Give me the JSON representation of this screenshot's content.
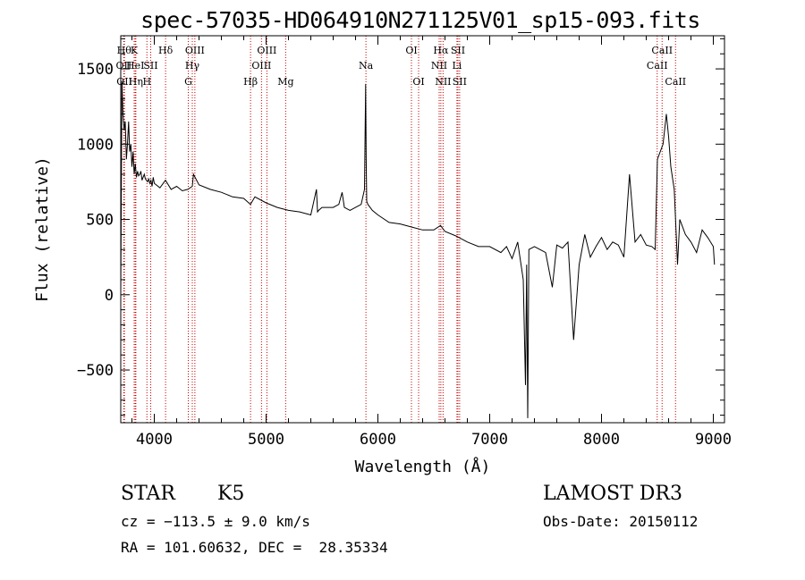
{
  "title": "spec-57035-HD064910N271125V01_sp15-093.fits",
  "chart_data": {
    "type": "line",
    "title": "spec-57035-HD064910N271125V01_sp15-093.fits",
    "xlabel": "Wavelength (Å)",
    "ylabel": "Flux (relative)",
    "xlim": [
      3700,
      9100
    ],
    "ylim": [
      -850,
      1720
    ],
    "xticks": [
      4000,
      5000,
      6000,
      7000,
      8000,
      9000
    ],
    "yticks": [
      -500,
      0,
      500,
      1000,
      1500
    ],
    "series": [
      {
        "name": "spectrum",
        "x": [
          3700,
          3710,
          3720,
          3730,
          3740,
          3750,
          3760,
          3770,
          3780,
          3790,
          3800,
          3810,
          3820,
          3830,
          3840,
          3850,
          3860,
          3870,
          3880,
          3890,
          3900,
          3910,
          3920,
          3930,
          3940,
          3950,
          3960,
          3970,
          3980,
          3990,
          4000,
          4050,
          4100,
          4150,
          4200,
          4250,
          4300,
          4340,
          4350,
          4400,
          4500,
          4600,
          4700,
          4800,
          4860,
          4900,
          5000,
          5100,
          5200,
          5300,
          5400,
          5450,
          5460,
          5470,
          5500,
          5600,
          5650,
          5680,
          5700,
          5750,
          5800,
          5850,
          5880,
          5890,
          5895,
          5900,
          5910,
          5950,
          6000,
          6100,
          6200,
          6300,
          6400,
          6500,
          6560,
          6600,
          6700,
          6800,
          6900,
          7000,
          7100,
          7150,
          7200,
          7250,
          7300,
          7320,
          7330,
          7340,
          7350,
          7400,
          7500,
          7560,
          7600,
          7650,
          7700,
          7750,
          7800,
          7850,
          7900,
          7950,
          8000,
          8050,
          8100,
          8150,
          8200,
          8250,
          8300,
          8350,
          8400,
          8450,
          8480,
          8500,
          8550,
          8580,
          8600,
          8620,
          8650,
          8680,
          8700,
          8750,
          8800,
          8850,
          8900,
          8950,
          9000,
          9010
        ],
        "y": [
          0,
          1420,
          1200,
          1100,
          1150,
          900,
          1000,
          1150,
          950,
          1000,
          850,
          950,
          800,
          870,
          780,
          820,
          790,
          800,
          820,
          760,
          780,
          800,
          770,
          760,
          750,
          770,
          740,
          760,
          720,
          780,
          740,
          710,
          760,
          700,
          720,
          690,
          700,
          720,
          800,
          730,
          700,
          680,
          650,
          640,
          600,
          650,
          610,
          580,
          560,
          550,
          530,
          700,
          550,
          560,
          580,
          580,
          600,
          680,
          580,
          560,
          580,
          600,
          700,
          1400,
          900,
          620,
          600,
          560,
          530,
          480,
          470,
          450,
          430,
          430,
          460,
          420,
          390,
          350,
          320,
          320,
          280,
          320,
          240,
          350,
          100,
          -600,
          200,
          -820,
          300,
          320,
          280,
          50,
          330,
          310,
          350,
          -300,
          200,
          400,
          250,
          320,
          380,
          300,
          350,
          330,
          250,
          800,
          350,
          400,
          330,
          320,
          300,
          900,
          1000,
          1200,
          1050,
          850,
          700,
          200,
          500,
          400,
          350,
          280,
          430,
          380,
          320,
          200
        ]
      }
    ],
    "line_ids": [
      {
        "x": 3730,
        "label": "Hθ",
        "row": 1
      },
      {
        "x": 3727,
        "label": "OII",
        "row": 2
      },
      {
        "x": 3733,
        "label": "OII",
        "row": 3
      },
      {
        "x": 3820,
        "label": "K",
        "row": 1
      },
      {
        "x": 3830,
        "label": "HeI",
        "row": 2
      },
      {
        "x": 3835,
        "label": "Hη",
        "row": 3
      },
      {
        "x": 3934,
        "label": "H",
        "row": 3
      },
      {
        "x": 3968,
        "label": "SII",
        "row": 2
      },
      {
        "x": 4101,
        "label": "Hδ",
        "row": 1
      },
      {
        "x": 4340,
        "label": "Hγ",
        "row": 2
      },
      {
        "x": 4363,
        "label": "OIII",
        "row": 1
      },
      {
        "x": 4304,
        "label": "G",
        "row": 3
      },
      {
        "x": 4861,
        "label": "Hβ",
        "row": 3
      },
      {
        "x": 4959,
        "label": "OIII",
        "row": 2
      },
      {
        "x": 5007,
        "label": "OIII",
        "row": 1
      },
      {
        "x": 5175,
        "label": "Mg",
        "row": 3
      },
      {
        "x": 5893,
        "label": "Na",
        "row": 2
      },
      {
        "x": 6300,
        "label": "OI",
        "row": 1
      },
      {
        "x": 6364,
        "label": "OI",
        "row": 3
      },
      {
        "x": 6548,
        "label": "NII",
        "row": 2
      },
      {
        "x": 6563,
        "label": "Hα",
        "row": 1
      },
      {
        "x": 6583,
        "label": "NII",
        "row": 3
      },
      {
        "x": 6707,
        "label": "Li",
        "row": 2
      },
      {
        "x": 6716,
        "label": "SII",
        "row": 1
      },
      {
        "x": 6731,
        "label": "SII",
        "row": 3
      },
      {
        "x": 8498,
        "label": "CaII",
        "row": 2
      },
      {
        "x": 8542,
        "label": "CaII",
        "row": 1
      },
      {
        "x": 8662,
        "label": "CaII",
        "row": 3
      }
    ]
  },
  "info": {
    "class_label": "STAR",
    "subclass": "K5",
    "survey": "LAMOST DR3",
    "cz": "cz = −113.5 ± 9.0 km/s",
    "obs_date": "Obs-Date: 20150112",
    "coords": "RA = 101.60632, DEC =  28.35334"
  },
  "colors": {
    "marker_line": "#cc0000",
    "spectrum": "#000000"
  }
}
